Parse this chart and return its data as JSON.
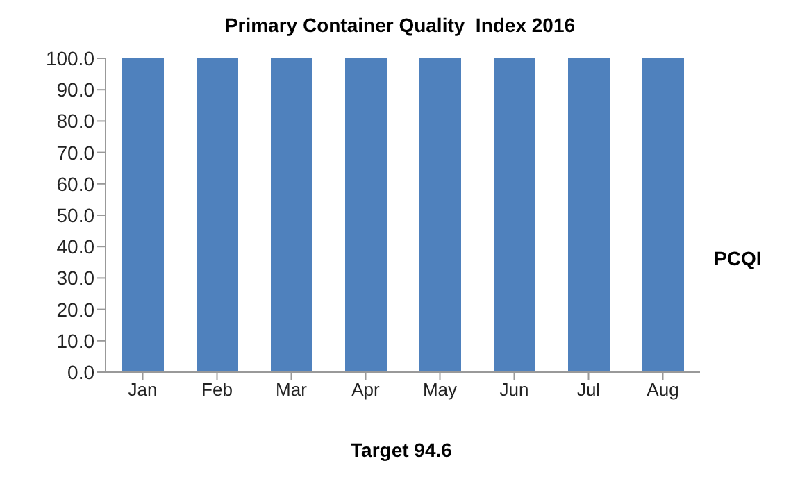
{
  "chart_data": {
    "type": "bar",
    "title": "Primary Container Quality  Index 2016",
    "xlabel": "Target 94.6",
    "annotations": [
      "PCQI"
    ],
    "categories": [
      "Jan",
      "Feb",
      "Mar",
      "Apr",
      "May",
      "Jun",
      "Jul",
      "Aug"
    ],
    "values": [
      100,
      100,
      100,
      100,
      100,
      100,
      100,
      100
    ],
    "color": "#4f81bd",
    "ylim": [
      0,
      100
    ],
    "yticks": [
      {
        "value": 0,
        "label": "0.0"
      },
      {
        "value": 10,
        "label": "10.0"
      },
      {
        "value": 20,
        "label": "20.0"
      },
      {
        "value": 30,
        "label": "30.0"
      },
      {
        "value": 40,
        "label": "40.0"
      },
      {
        "value": 50,
        "label": "50.0"
      },
      {
        "value": 60,
        "label": "60.0"
      },
      {
        "value": 70,
        "label": "70.0"
      },
      {
        "value": 80,
        "label": "80.0"
      },
      {
        "value": 90,
        "label": "90.0"
      },
      {
        "value": 100,
        "label": "100.0"
      }
    ],
    "grid": false
  }
}
